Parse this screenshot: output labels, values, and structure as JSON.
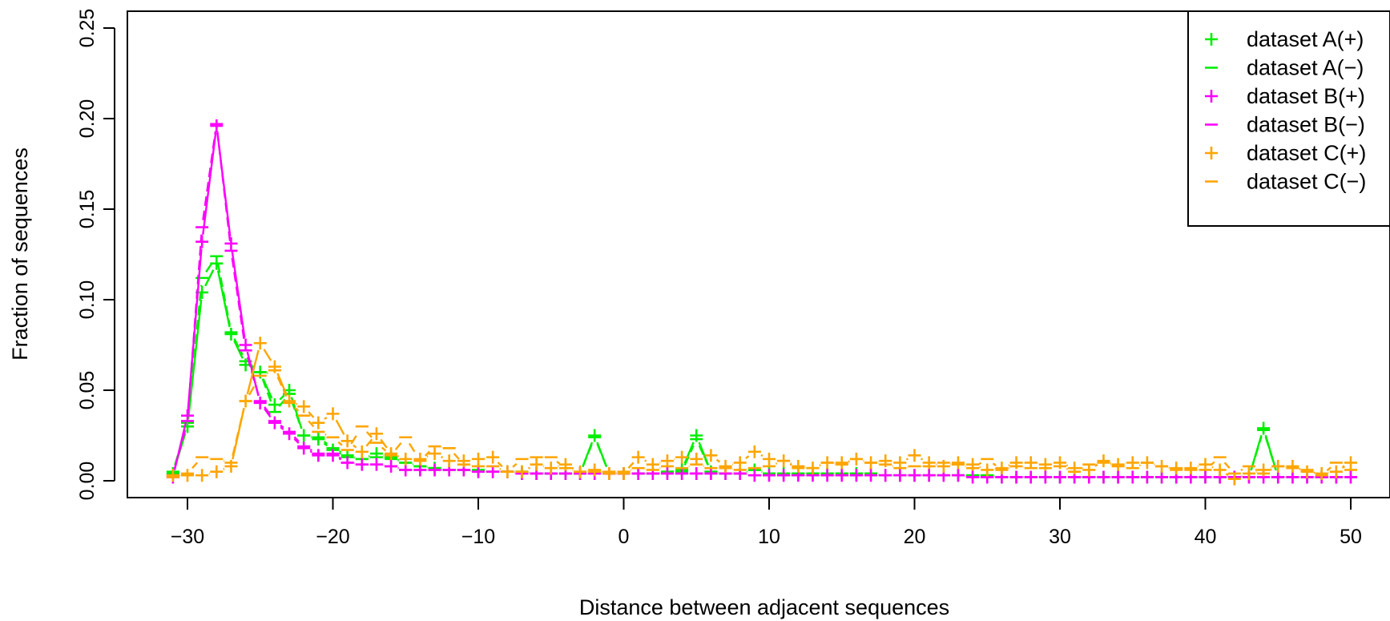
{
  "chart_data": {
    "type": "line",
    "title": "",
    "xlabel": "Distance between adjacent sequences",
    "ylabel": "Fraction of sequences",
    "xlim": [
      -34,
      51
    ],
    "ylim": [
      -0.012,
      0.26
    ],
    "xticks": [
      -30,
      -20,
      -10,
      0,
      10,
      20,
      30,
      40,
      50
    ],
    "xtick_labels": [
      "−30",
      "−20",
      "−10",
      "0",
      "10",
      "20",
      "30",
      "40",
      "50"
    ],
    "yticks": [
      0.0,
      0.05,
      0.1,
      0.15,
      0.2,
      0.25
    ],
    "ytick_labels": [
      "0.00",
      "0.05",
      "0.10",
      "0.15",
      "0.20",
      "0.25"
    ],
    "grid": false,
    "legend_position": "top-right",
    "x": [
      -31,
      -30,
      -29,
      -28,
      -27,
      -26,
      -25,
      -24,
      -23,
      -22,
      -21,
      -20,
      -19,
      -18,
      -17,
      -16,
      -15,
      -14,
      -13,
      -12,
      -11,
      -10,
      -9,
      -8,
      -7,
      -6,
      -5,
      -4,
      -3,
      -2,
      -1,
      0,
      1,
      2,
      3,
      4,
      5,
      6,
      7,
      8,
      9,
      10,
      11,
      12,
      13,
      14,
      15,
      16,
      17,
      18,
      19,
      20,
      21,
      22,
      23,
      24,
      25,
      26,
      27,
      28,
      29,
      30,
      31,
      32,
      33,
      34,
      35,
      36,
      37,
      38,
      39,
      40,
      41,
      42,
      43,
      44,
      45,
      46,
      47,
      48,
      49,
      50
    ],
    "series": [
      {
        "name": "dataset A(+)",
        "color": "#00ee00",
        "marker": "+",
        "values": [
          0.004,
          0.03,
          0.104,
          0.12,
          0.081,
          0.064,
          0.06,
          0.042,
          0.05,
          0.025,
          0.023,
          0.017,
          0.013,
          0.012,
          0.015,
          0.013,
          0.01,
          0.008,
          0.007,
          0.006,
          0.006,
          0.006,
          0.005,
          0.005,
          0.005,
          0.004,
          0.004,
          0.004,
          0.004,
          0.025,
          0.004,
          0.004,
          0.004,
          0.004,
          0.005,
          0.006,
          0.025,
          0.005,
          0.004,
          0.004,
          0.006,
          0.004,
          0.004,
          0.004,
          0.004,
          0.004,
          0.004,
          0.004,
          0.004,
          0.003,
          0.003,
          0.003,
          0.003,
          0.003,
          0.003,
          0.003,
          0.003,
          0.002,
          0.002,
          0.002,
          0.002,
          0.002,
          0.002,
          0.002,
          0.002,
          0.002,
          0.002,
          0.002,
          0.002,
          0.002,
          0.002,
          0.002,
          0.002,
          0.002,
          0.002,
          0.029,
          0.002,
          0.002,
          0.002,
          0.002,
          0.002,
          0.002
        ]
      },
      {
        "name": "dataset A(−)",
        "color": "#00ee00",
        "marker": "−",
        "values": [
          0.005,
          0.032,
          0.112,
          0.124,
          0.082,
          0.066,
          0.06,
          0.038,
          0.048,
          0.025,
          0.024,
          0.018,
          0.014,
          0.012,
          0.013,
          0.012,
          0.01,
          0.008,
          0.007,
          0.006,
          0.006,
          0.006,
          0.005,
          0.005,
          0.005,
          0.004,
          0.004,
          0.004,
          0.004,
          0.024,
          0.004,
          0.004,
          0.004,
          0.004,
          0.005,
          0.005,
          0.023,
          0.005,
          0.004,
          0.004,
          0.006,
          0.004,
          0.004,
          0.004,
          0.004,
          0.004,
          0.004,
          0.004,
          0.004,
          0.003,
          0.003,
          0.003,
          0.003,
          0.003,
          0.003,
          0.003,
          0.003,
          0.002,
          0.002,
          0.002,
          0.002,
          0.002,
          0.002,
          0.002,
          0.002,
          0.002,
          0.002,
          0.002,
          0.002,
          0.002,
          0.002,
          0.002,
          0.002,
          0.002,
          0.002,
          0.028,
          0.002,
          0.002,
          0.002,
          0.002,
          0.002,
          0.002
        ]
      },
      {
        "name": "dataset B(+)",
        "color": "#ff00ff",
        "marker": "+",
        "values": [
          0.002,
          0.036,
          0.132,
          0.196,
          0.131,
          0.075,
          0.043,
          0.032,
          0.026,
          0.018,
          0.014,
          0.014,
          0.01,
          0.009,
          0.009,
          0.008,
          0.006,
          0.006,
          0.006,
          0.006,
          0.006,
          0.005,
          0.005,
          0.005,
          0.004,
          0.004,
          0.004,
          0.004,
          0.004,
          0.004,
          0.004,
          0.004,
          0.004,
          0.004,
          0.004,
          0.004,
          0.004,
          0.004,
          0.004,
          0.004,
          0.003,
          0.003,
          0.003,
          0.003,
          0.003,
          0.003,
          0.003,
          0.003,
          0.003,
          0.003,
          0.003,
          0.003,
          0.003,
          0.003,
          0.003,
          0.002,
          0.002,
          0.002,
          0.002,
          0.002,
          0.002,
          0.002,
          0.002,
          0.002,
          0.002,
          0.002,
          0.002,
          0.002,
          0.002,
          0.002,
          0.002,
          0.002,
          0.002,
          0.002,
          0.002,
          0.002,
          0.002,
          0.002,
          0.002,
          0.002,
          0.002,
          0.002
        ]
      },
      {
        "name": "dataset B(−)",
        "color": "#ff00ff",
        "marker": "−",
        "values": [
          0.003,
          0.033,
          0.14,
          0.197,
          0.127,
          0.072,
          0.044,
          0.033,
          0.027,
          0.019,
          0.015,
          0.015,
          0.01,
          0.009,
          0.009,
          0.008,
          0.006,
          0.006,
          0.006,
          0.006,
          0.006,
          0.005,
          0.005,
          0.005,
          0.004,
          0.004,
          0.004,
          0.004,
          0.004,
          0.004,
          0.004,
          0.004,
          0.004,
          0.004,
          0.004,
          0.004,
          0.004,
          0.004,
          0.004,
          0.004,
          0.003,
          0.003,
          0.003,
          0.003,
          0.003,
          0.003,
          0.003,
          0.003,
          0.003,
          0.003,
          0.003,
          0.003,
          0.003,
          0.003,
          0.003,
          0.002,
          0.002,
          0.002,
          0.002,
          0.002,
          0.002,
          0.002,
          0.002,
          0.002,
          0.002,
          0.002,
          0.002,
          0.002,
          0.002,
          0.002,
          0.002,
          0.002,
          0.002,
          0.002,
          0.002,
          0.002,
          0.002,
          0.002,
          0.002,
          0.002,
          0.002,
          0.002
        ]
      },
      {
        "name": "dataset C(+)",
        "color": "#ffa500",
        "marker": "+",
        "values": [
          0.003,
          0.003,
          0.003,
          0.005,
          0.008,
          0.044,
          0.076,
          0.063,
          0.044,
          0.041,
          0.032,
          0.037,
          0.022,
          0.016,
          0.026,
          0.015,
          0.012,
          0.012,
          0.015,
          0.011,
          0.011,
          0.012,
          0.013,
          0.005,
          0.005,
          0.009,
          0.007,
          0.009,
          0.005,
          0.006,
          0.004,
          0.004,
          0.013,
          0.009,
          0.011,
          0.013,
          0.012,
          0.014,
          0.008,
          0.01,
          0.016,
          0.012,
          0.011,
          0.008,
          0.007,
          0.01,
          0.01,
          0.012,
          0.01,
          0.011,
          0.01,
          0.014,
          0.01,
          0.008,
          0.01,
          0.009,
          0.006,
          0.007,
          0.01,
          0.01,
          0.009,
          0.01,
          0.007,
          0.006,
          0.011,
          0.009,
          0.01,
          0.01,
          0.008,
          0.007,
          0.007,
          0.009,
          0.006,
          0.001,
          0.004,
          0.006,
          0.008,
          0.008,
          0.005,
          0.004,
          0.005,
          0.01
        ]
      },
      {
        "name": "dataset C(−)",
        "color": "#ffa500",
        "marker": "−",
        "values": [
          0.002,
          0.004,
          0.013,
          0.012,
          0.01,
          0.044,
          0.058,
          0.061,
          0.043,
          0.036,
          0.027,
          0.024,
          0.017,
          0.03,
          0.021,
          0.014,
          0.024,
          0.011,
          0.019,
          0.018,
          0.009,
          0.008,
          0.008,
          0.005,
          0.012,
          0.013,
          0.013,
          0.007,
          0.005,
          0.005,
          0.005,
          0.005,
          0.007,
          0.006,
          0.008,
          0.007,
          0.009,
          0.007,
          0.007,
          0.006,
          0.007,
          0.008,
          0.011,
          0.007,
          0.007,
          0.01,
          0.009,
          0.012,
          0.01,
          0.009,
          0.007,
          0.008,
          0.008,
          0.01,
          0.009,
          0.007,
          0.012,
          0.006,
          0.008,
          0.007,
          0.007,
          0.008,
          0.005,
          0.009,
          0.01,
          0.008,
          0.007,
          0.01,
          0.008,
          0.006,
          0.006,
          0.006,
          0.013,
          0.004,
          0.008,
          0.004,
          0.008,
          0.007,
          0.006,
          0.003,
          0.01,
          0.006
        ]
      }
    ]
  }
}
